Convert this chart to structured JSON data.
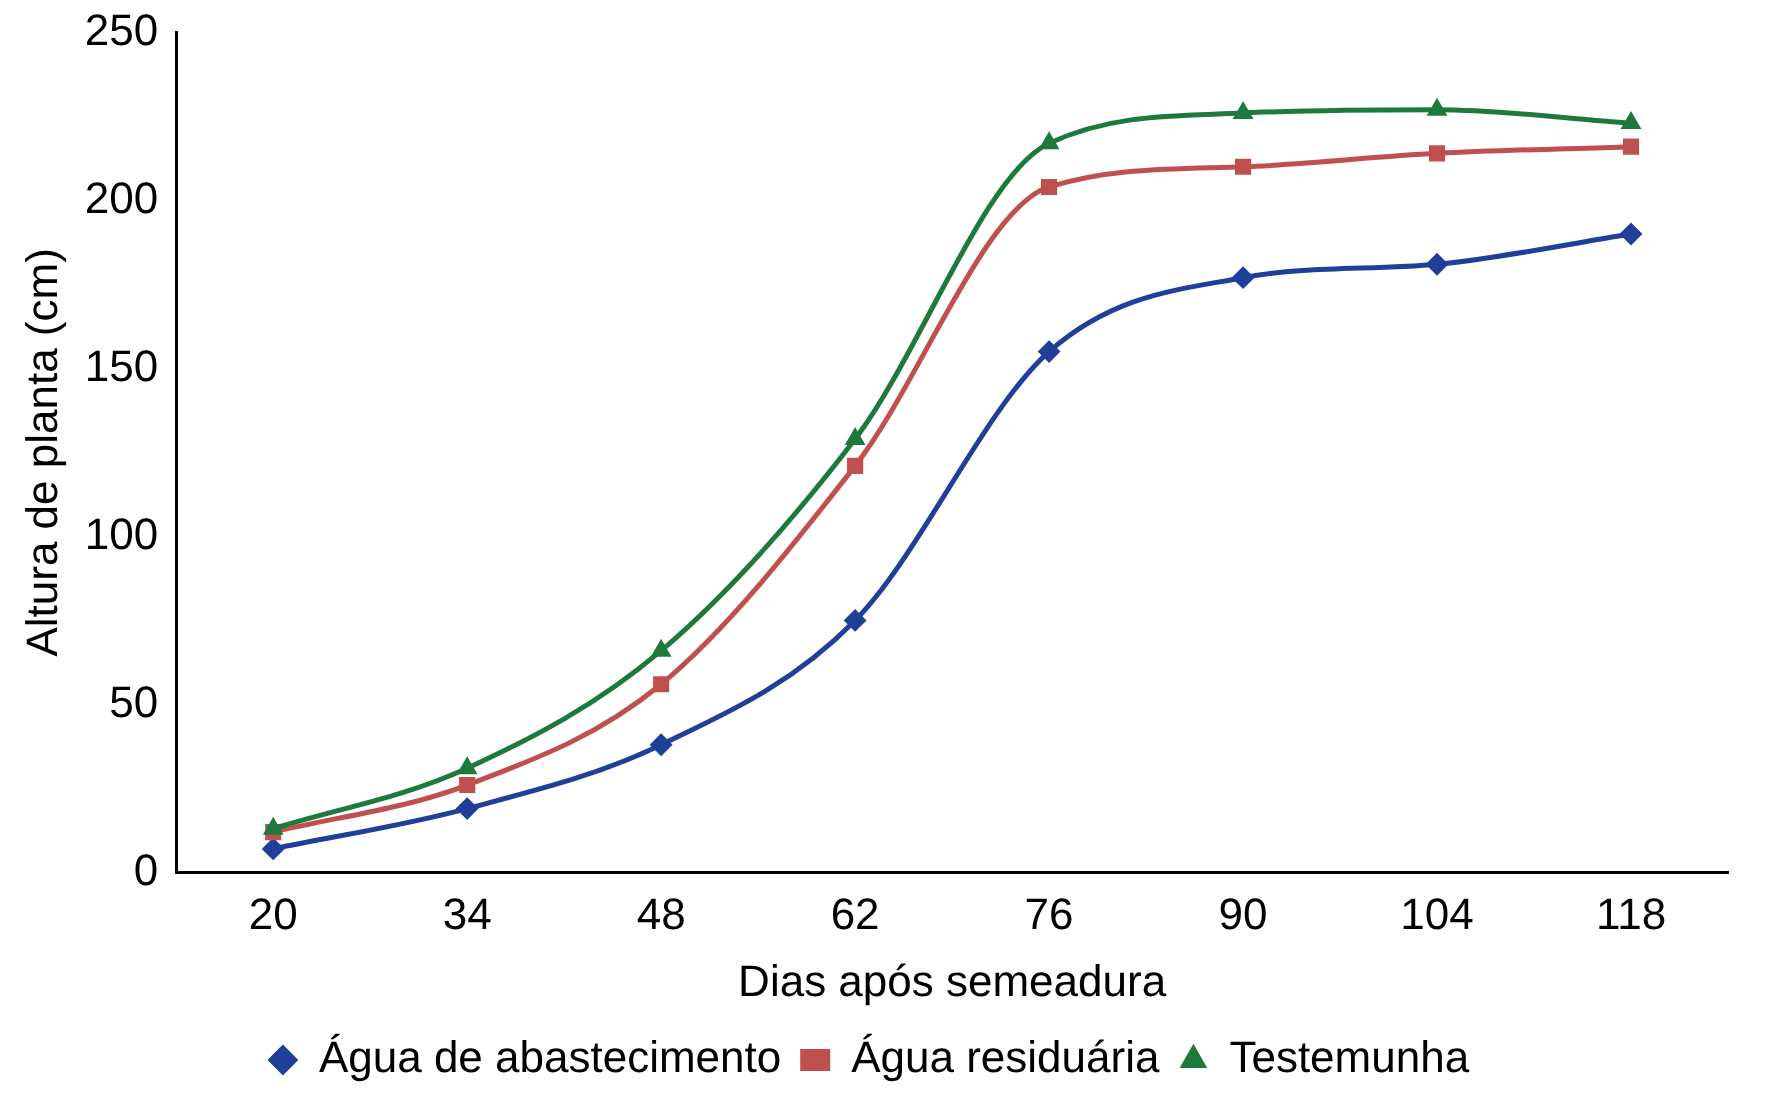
{
  "chart_data": {
    "type": "line",
    "xlabel": "Dias após semeadura",
    "ylabel": "Altura de planta (cm)",
    "categories": [
      "20",
      "34",
      "48",
      "62",
      "76",
      "90",
      "104",
      "118"
    ],
    "ylim": [
      0,
      250
    ],
    "yticks": [
      0,
      50,
      100,
      150,
      200,
      250
    ],
    "grid": false,
    "legend": "bottom",
    "series": [
      {
        "name": "Água de abastecimento",
        "color": "#1f3f99",
        "marker": "diamond",
        "values": [
          7,
          19,
          38,
          75,
          155,
          177,
          181,
          190
        ]
      },
      {
        "name": "Água residuária",
        "color": "#c0504d",
        "marker": "square",
        "values": [
          12,
          26,
          56,
          121,
          204,
          210,
          214,
          216
        ]
      },
      {
        "name": "Testemunha",
        "color": "#1e7a3c",
        "marker": "triangle",
        "values": [
          13,
          31,
          66,
          129,
          217,
          226,
          227,
          223
        ]
      }
    ]
  }
}
